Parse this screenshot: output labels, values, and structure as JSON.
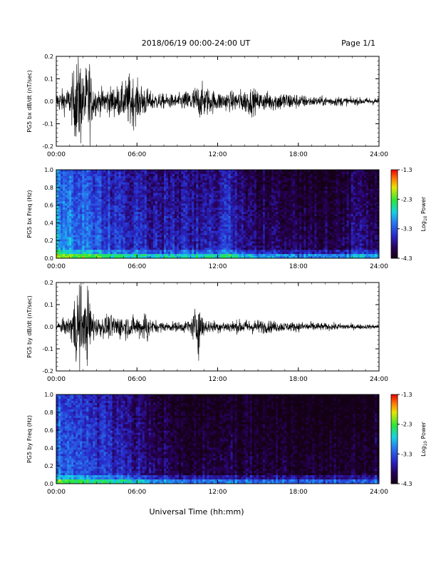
{
  "header": {
    "date_range": "2018/06/19   00:00-24:00 UT",
    "page": "Page 1/1"
  },
  "footer": {
    "xlabel": "Universal Time (hh:mm)"
  },
  "colorbar": {
    "label": "Log",
    "label_sub": "10",
    "label_tail": " Power",
    "ticks": [
      "-1.3",
      "-2.3",
      "-3.3",
      "-4.3"
    ]
  },
  "chart_data": [
    {
      "type": "line",
      "title": "",
      "ylabel": "PG5 bx dB/dt (nT/sec)",
      "xlabel": "",
      "x_ticks": [
        "00:00",
        "06:00",
        "12:00",
        "18:00",
        "24:00"
      ],
      "x_range_hours": [
        0,
        24
      ],
      "ylim": [
        -0.2,
        0.2
      ],
      "y_ticks": [
        "0.2",
        "0.1",
        "0.0",
        "-0.1",
        "-0.2"
      ],
      "envelope": {
        "hour": [
          0,
          1,
          1.6,
          1.8,
          2.0,
          2.5,
          2.6,
          3,
          4,
          5,
          5.5,
          6,
          6.5,
          7,
          8,
          9,
          10,
          10.5,
          11,
          11.5,
          12,
          13,
          14,
          14.5,
          15,
          16,
          17,
          18,
          19,
          20,
          21,
          22,
          23,
          24
        ],
        "amplitude": [
          0.04,
          0.06,
          0.2,
          0.2,
          0.1,
          0.2,
          0.1,
          0.05,
          0.06,
          0.07,
          0.12,
          0.08,
          0.07,
          0.04,
          0.03,
          0.03,
          0.05,
          0.07,
          0.07,
          0.05,
          0.04,
          0.04,
          0.05,
          0.06,
          0.04,
          0.04,
          0.04,
          0.03,
          0.02,
          0.02,
          0.02,
          0.015,
          0.015,
          0.015
        ]
      }
    },
    {
      "type": "heatmap",
      "title": "",
      "ylabel": "PG5 bx Freq (Hz)",
      "xlabel": "",
      "x_ticks": [
        "00:00",
        "06:00",
        "12:00",
        "18:00",
        "24:00"
      ],
      "x_range_hours": [
        0,
        24
      ],
      "ylim": [
        0,
        1
      ],
      "y_ticks": [
        "1.0",
        "0.8",
        "0.6",
        "0.4",
        "0.2",
        "0.0"
      ],
      "value_range_log10_power": [
        -4.3,
        -1.3
      ],
      "mean_log10_power_by_hour": {
        "hour": [
          0,
          2,
          4,
          6,
          8,
          10,
          12,
          13,
          14,
          16,
          18,
          20,
          22,
          24
        ],
        "log10_power": [
          -2.9,
          -3.1,
          -3.4,
          -3.5,
          -3.6,
          -3.6,
          -3.6,
          -3.4,
          -3.7,
          -3.9,
          -3.9,
          -4.0,
          -3.8,
          -3.8
        ]
      }
    },
    {
      "type": "line",
      "title": "",
      "ylabel": "PG5 by dB/dt (nT/sec)",
      "xlabel": "",
      "x_ticks": [
        "00:00",
        "06:00",
        "12:00",
        "18:00",
        "24:00"
      ],
      "x_range_hours": [
        0,
        24
      ],
      "ylim": [
        -0.2,
        0.2
      ],
      "y_ticks": [
        "0.2",
        "0.1",
        "0.0",
        "-0.1",
        "-0.2"
      ],
      "envelope": {
        "hour": [
          0,
          1,
          1.6,
          1.8,
          2.0,
          2.5,
          2.6,
          3,
          4,
          5,
          6,
          6.8,
          7,
          8,
          9,
          10,
          10.6,
          11,
          12,
          13,
          14,
          15,
          16,
          17,
          18,
          19,
          20,
          21,
          22,
          23,
          24
        ],
        "amplitude": [
          0.02,
          0.04,
          0.2,
          0.2,
          0.08,
          0.2,
          0.08,
          0.04,
          0.05,
          0.05,
          0.04,
          0.08,
          0.03,
          0.02,
          0.02,
          0.03,
          0.12,
          0.03,
          0.025,
          0.025,
          0.03,
          0.03,
          0.025,
          0.02,
          0.02,
          0.02,
          0.015,
          0.015,
          0.012,
          0.01,
          0.01
        ]
      }
    },
    {
      "type": "heatmap",
      "title": "",
      "ylabel": "PG5 by Freq (Hz)",
      "xlabel": "",
      "x_ticks": [
        "00:00",
        "06:00",
        "12:00",
        "18:00",
        "24:00"
      ],
      "x_range_hours": [
        0,
        24
      ],
      "ylim": [
        0,
        1
      ],
      "y_ticks": [
        "1.0",
        "0.8",
        "0.6",
        "0.4",
        "0.2",
        "0.0"
      ],
      "value_range_log10_power": [
        -4.3,
        -1.3
      ],
      "mean_log10_power_by_hour": {
        "hour": [
          0,
          2,
          4,
          6,
          8,
          10,
          12,
          14,
          16,
          18,
          20,
          22,
          24
        ],
        "log10_power": [
          -3.1,
          -3.3,
          -3.5,
          -3.7,
          -3.9,
          -4.0,
          -4.0,
          -4.0,
          -4.1,
          -4.1,
          -4.2,
          -4.1,
          -4.0
        ]
      }
    }
  ]
}
